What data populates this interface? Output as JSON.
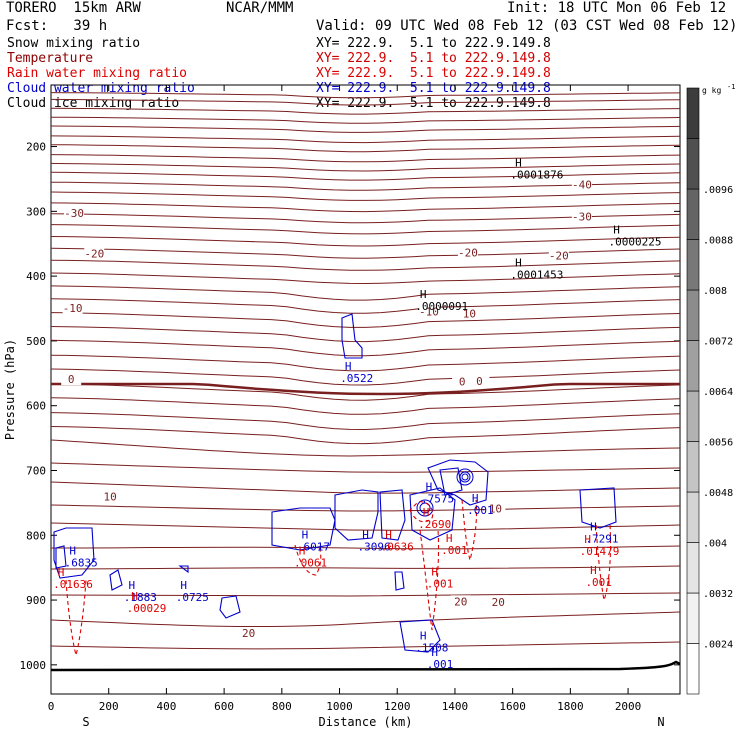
{
  "header": {
    "model": "TORERO  15km ARW",
    "org": "NCAR/MMM",
    "init": "Init: 18 UTC Mon 06 Feb 12",
    "fcst": "Fcst:   39 h",
    "valid": "Valid: 09 UTC Wed 08 Feb 12 (03 CST Wed 08 Feb 12)"
  },
  "fields": [
    {
      "name": "Snow mixing ratio",
      "xy": "XY= 222.9.  5.1 to 222.9.149.8",
      "color": "#000000",
      "xy_color": "#000000"
    },
    {
      "name": "Temperature",
      "xy": "XY= 222.9.  5.1 to 222.9.149.8",
      "color": "#8b0000",
      "xy_color": "#cc0000"
    },
    {
      "name": "Rain water mixing ratio",
      "xy": "XY= 222.9.  5.1 to 222.9.149.8",
      "color": "#dd0000",
      "xy_color": "#dd0000"
    },
    {
      "name": "Cloud water mixing ratio",
      "xy": "XY= 222.9.  5.1 to 222.9.149.8",
      "color": "#0000cc",
      "xy_color": "#0000cc"
    },
    {
      "name": "Cloud ice mixing ratio",
      "xy": "XY= 222.9.  5.1 to 222.9.149.8",
      "color": "#000000",
      "xy_color": "#000000"
    }
  ],
  "chart_data": {
    "type": "contour",
    "xlabel": "Distance (km)",
    "ylabel": "Pressure (hPa)",
    "xlim": [
      0,
      2180
    ],
    "ylim": [
      1045,
      105
    ],
    "x_ticks": [
      0,
      200,
      400,
      600,
      800,
      1000,
      1200,
      1400,
      1600,
      1800,
      2000
    ],
    "y_ticks": [
      200,
      300,
      400,
      500,
      600,
      700,
      800,
      900,
      1000
    ],
    "endpoints": {
      "left": "S",
      "right": "N"
    },
    "colorbar": {
      "unit": "g kg",
      "unit_exp": "-1",
      "ticks": [
        ".0024",
        ".0032",
        ".004",
        ".0048",
        ".0056",
        ".0064",
        ".0072",
        ".008",
        ".0088",
        ".0096"
      ],
      "shades": [
        "#ffffff",
        "#f2f2f2",
        "#e4e4e4",
        "#d4d4d4",
        "#c4c4c4",
        "#b2b2b2",
        "#a0a0a0",
        "#8c8c8c",
        "#787878",
        "#646464",
        "#505050",
        "#3c3c3c"
      ]
    },
    "temperature_labels": [
      {
        "text": "-40",
        "x": 1840,
        "p": 262
      },
      {
        "text": "-30",
        "x": 80,
        "p": 306
      },
      {
        "text": "-30",
        "x": 1840,
        "p": 311
      },
      {
        "text": "-20",
        "x": 150,
        "p": 368
      },
      {
        "text": "-20",
        "x": 1445,
        "p": 367
      },
      {
        "text": "-20",
        "x": 1760,
        "p": 371
      },
      {
        "text": "-10",
        "x": 75,
        "p": 452
      },
      {
        "text": "-10",
        "x": 1310,
        "p": 458
      },
      {
        "text": "10",
        "x": 1450,
        "p": 461
      },
      {
        "text": "0",
        "x": 70,
        "p": 562
      },
      {
        "text": "0",
        "x": 1425,
        "p": 566
      },
      {
        "text": "0",
        "x": 1485,
        "p": 565
      },
      {
        "text": "10",
        "x": 205,
        "p": 743
      },
      {
        "text": "10",
        "x": 1540,
        "p": 762
      },
      {
        "text": "20",
        "x": 1420,
        "p": 905
      },
      {
        "text": "20",
        "x": 1550,
        "p": 906
      },
      {
        "text": "20",
        "x": 685,
        "p": 954
      }
    ],
    "maxima": [
      {
        "field": "Snow mixing ratio",
        "x": 1620,
        "p": 231,
        "value": ".0001876"
      },
      {
        "field": "Snow mixing ratio",
        "x": 1960,
        "p": 334,
        "value": ".0000225"
      },
      {
        "field": "Snow mixing ratio",
        "x": 1620,
        "p": 385,
        "value": ".0001453"
      },
      {
        "field": "Snow mixing ratio",
        "x": 1290,
        "p": 434,
        "value": ".0000091"
      },
      {
        "field": "Cloud water mixing ratio",
        "x": 1030,
        "p": 545,
        "value": ".0522"
      },
      {
        "field": "Cloud water mixing ratio",
        "x": 1310,
        "p": 731,
        "value": ".7575"
      },
      {
        "field": "Cloud water mixing ratio",
        "x": 1470,
        "p": 749,
        "value": ".001"
      },
      {
        "field": "Cloud water mixing ratio",
        "x": 880,
        "p": 805,
        "value": ".6017"
      },
      {
        "field": "Cloud water mixing ratio",
        "x": 1090,
        "p": 805,
        "value": ".3096"
      },
      {
        "field": "Cloud water mixing ratio",
        "x": 1880,
        "p": 793,
        "value": ".7291"
      },
      {
        "field": "Cloud water mixing ratio",
        "x": 75,
        "p": 830,
        "value": ".6835"
      },
      {
        "field": "Cloud water mixing ratio",
        "x": 280,
        "p": 883,
        "value": ".1883"
      },
      {
        "field": "Cloud water mixing ratio",
        "x": 460,
        "p": 883,
        "value": ".0725"
      },
      {
        "field": "Cloud water mixing ratio",
        "x": 1290,
        "p": 961,
        "value": ".1508"
      },
      {
        "field": "Cloud water mixing ratio",
        "x": 1330,
        "p": 986,
        "value": ".001"
      },
      {
        "field": "Rain water mixing ratio",
        "x": 1300,
        "p": 770,
        "value": ".2690"
      },
      {
        "field": "Rain water mixing ratio",
        "x": 1170,
        "p": 805,
        "value": ".0636"
      },
      {
        "field": "Rain water mixing ratio",
        "x": 1380,
        "p": 810,
        "value": ".001"
      },
      {
        "field": "Rain water mixing ratio",
        "x": 1860,
        "p": 812,
        "value": ".01479"
      },
      {
        "field": "Rain water mixing ratio",
        "x": 870,
        "p": 830,
        "value": ".0061"
      },
      {
        "field": "Rain water mixing ratio",
        "x": 1330,
        "p": 862,
        "value": ".001"
      },
      {
        "field": "Rain water mixing ratio",
        "x": 1880,
        "p": 860,
        "value": ".001"
      },
      {
        "field": "Rain water mixing ratio",
        "x": 35,
        "p": 863,
        "value": ".01636"
      },
      {
        "field": "Rain water mixing ratio",
        "x": 290,
        "p": 900,
        "value": ".00029"
      }
    ]
  }
}
